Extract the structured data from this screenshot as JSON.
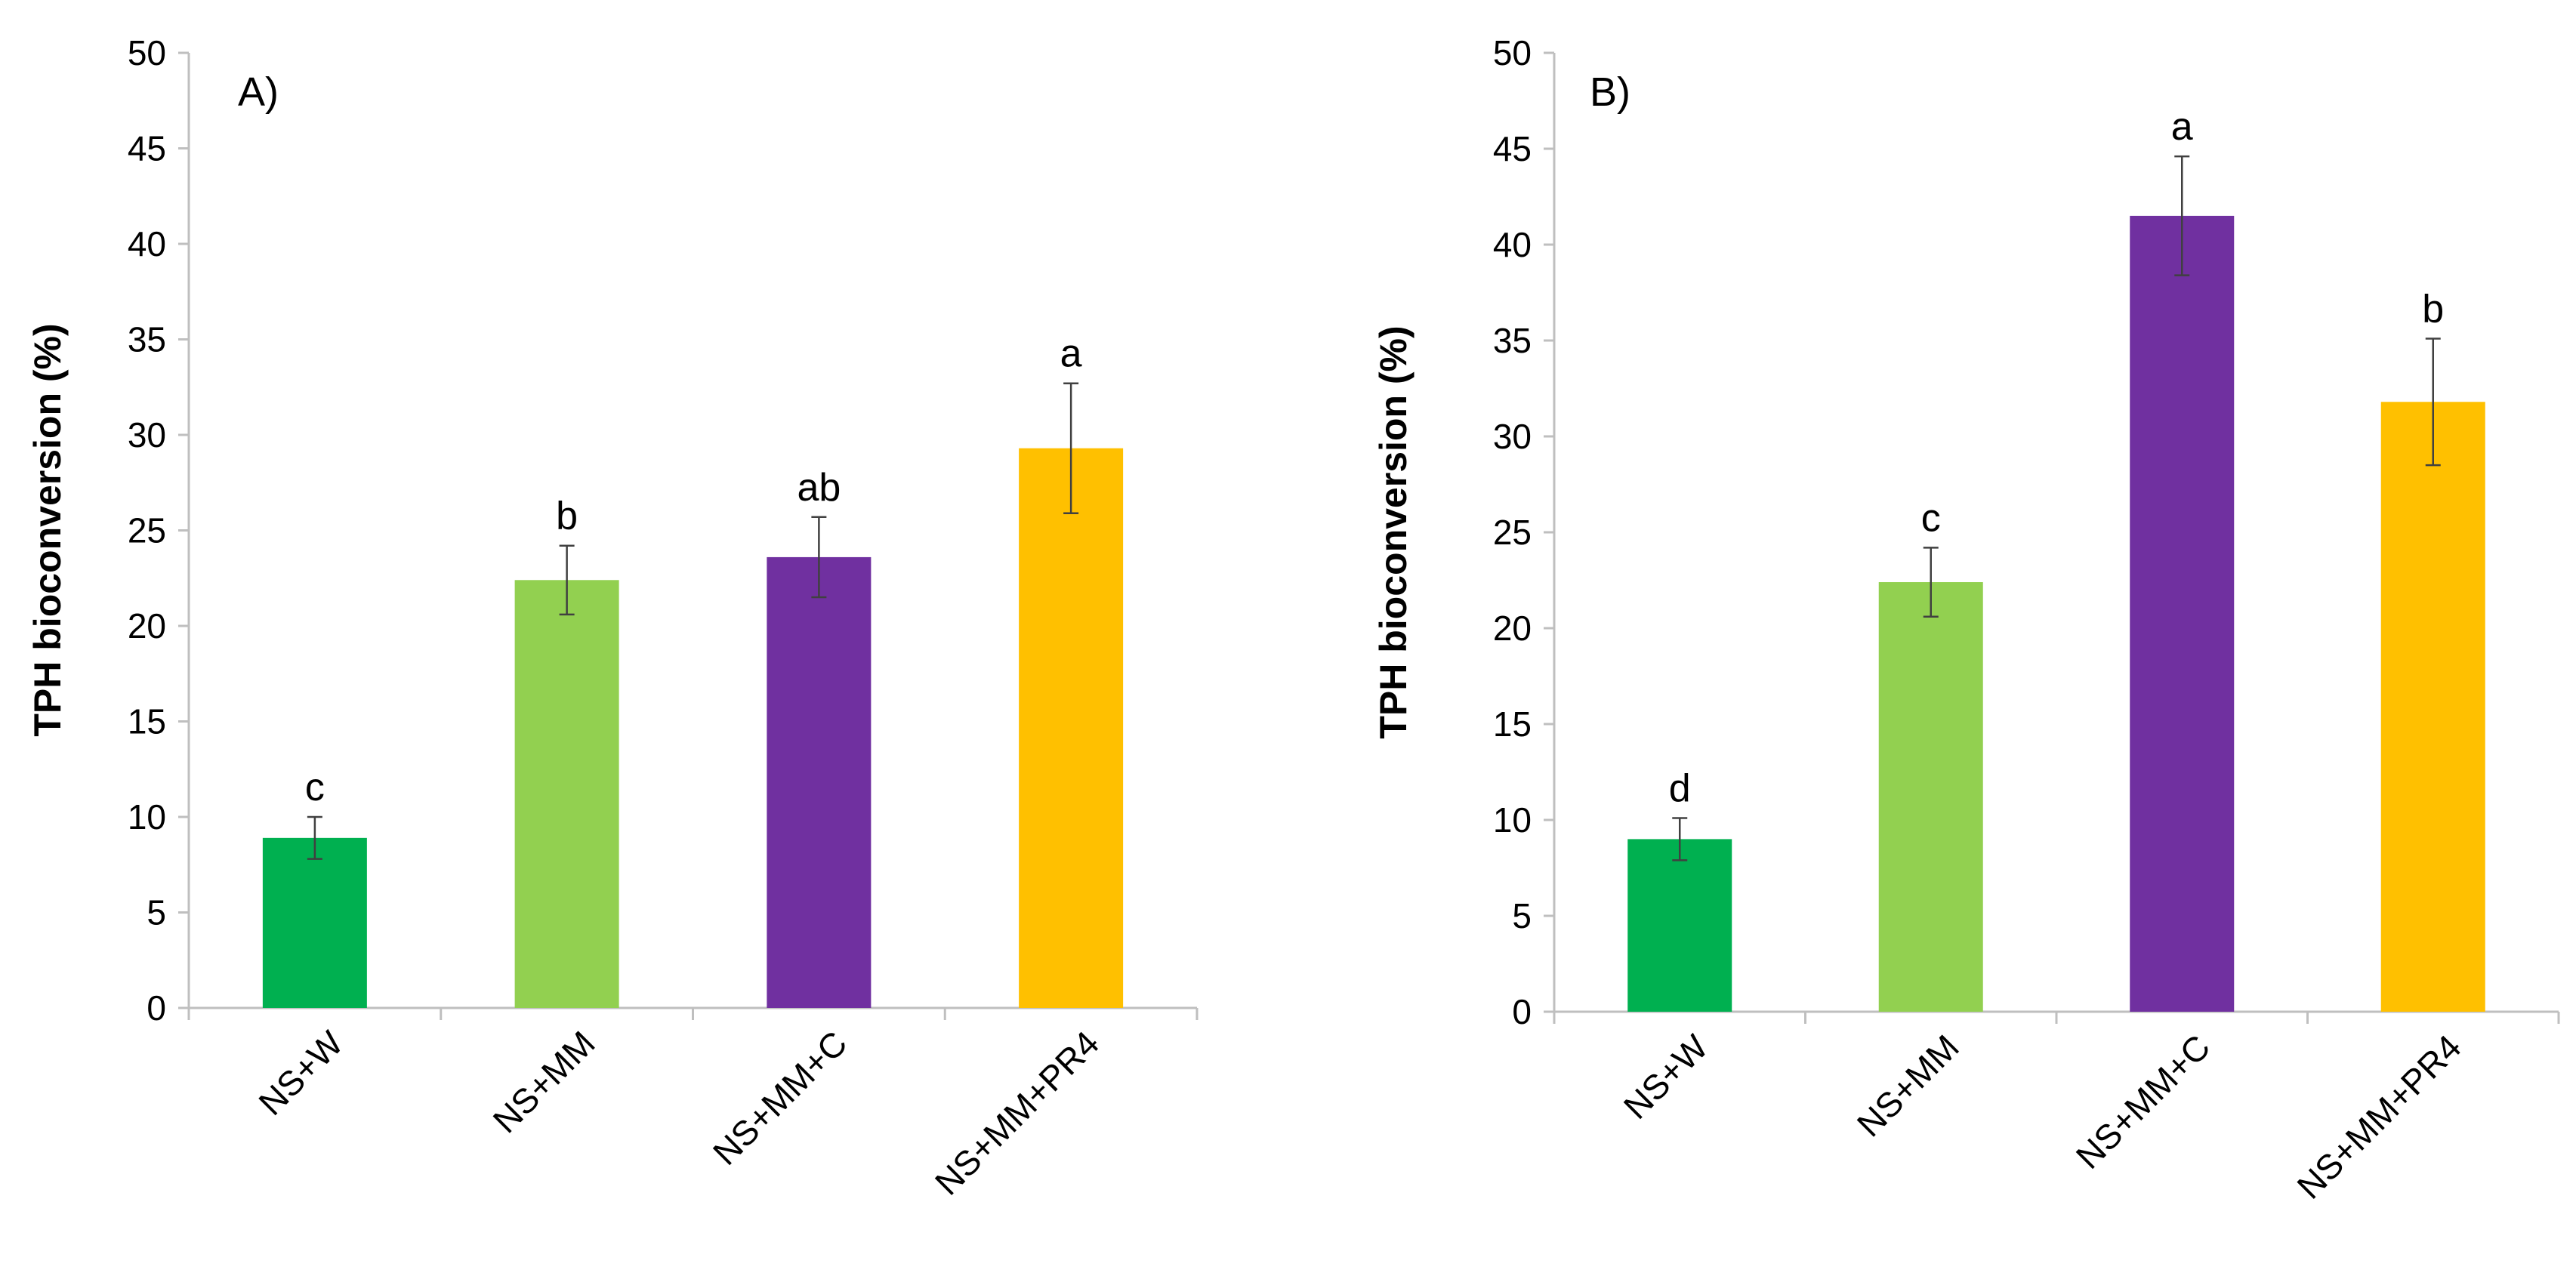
{
  "chart_data": [
    {
      "type": "bar",
      "panel_label": "A)",
      "ylabel": "TPH bioconversion (%)",
      "xlabel": "",
      "ylim": [
        0,
        50
      ],
      "yticks": [
        0,
        5,
        10,
        15,
        20,
        25,
        30,
        35,
        40,
        45,
        50
      ],
      "grid": false,
      "categories": [
        "NS+W",
        "NS+MM",
        "NS+MM+C",
        "NS+MM+PR4"
      ],
      "values": [
        8.9,
        22.4,
        23.6,
        29.3
      ],
      "errors": [
        1.1,
        1.8,
        2.1,
        3.4
      ],
      "significance_letters": [
        "c",
        "b",
        "ab",
        "a"
      ],
      "colors": [
        "#00b050",
        "#92d050",
        "#7030a0",
        "#ffc000"
      ]
    },
    {
      "type": "bar",
      "panel_label": "B)",
      "ylabel": "TPH bioconversion  (%)",
      "xlabel": "",
      "ylim": [
        0,
        50
      ],
      "yticks": [
        0,
        5,
        10,
        15,
        20,
        25,
        30,
        35,
        40,
        45,
        50
      ],
      "grid": false,
      "categories": [
        "NS+W",
        "NS+MM",
        "NS+MM+C",
        "NS+MM+PR4"
      ],
      "values": [
        9.0,
        22.4,
        41.5,
        31.8
      ],
      "errors": [
        1.1,
        1.8,
        3.1,
        3.3
      ],
      "significance_letters": [
        "d",
        "c",
        "a",
        "b"
      ],
      "colors": [
        "#00b050",
        "#92d050",
        "#7030a0",
        "#ffc000"
      ]
    }
  ]
}
